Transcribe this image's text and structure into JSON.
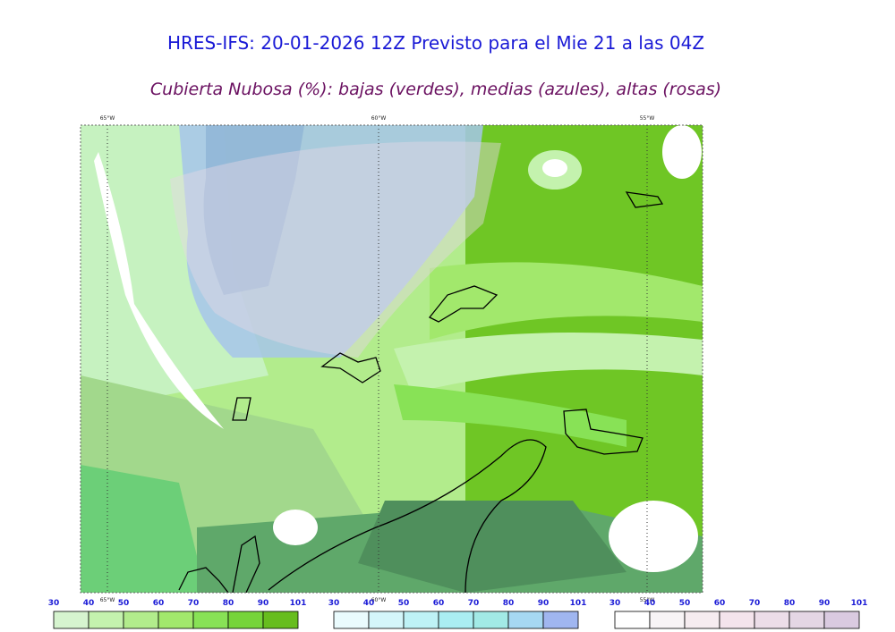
{
  "title": "HRES-IFS: 20-01-2026 12Z Previsto para el Mie 21 a las 04Z",
  "subtitle": "Cubierta Nubosa (%): bajas (verdes), medias (azules), altas (rosas)",
  "map": {
    "meridian_labels": [
      "65°W",
      "60°W",
      "55°W"
    ]
  },
  "colorbars": [
    {
      "ticks": [
        30,
        40,
        50,
        60,
        70,
        80,
        90,
        101
      ],
      "colors": [
        "#d6f4cf",
        "#c4f2ae",
        "#b2ec8c",
        "#a2e86c",
        "#88e256",
        "#76d43a",
        "#67bd1e"
      ]
    },
    {
      "ticks": [
        30,
        40,
        50,
        60,
        70,
        80,
        90,
        101
      ],
      "colors": [
        "#eafbfd",
        "#d4f6fa",
        "#bef2f6",
        "#aaeef2",
        "#a2eae6",
        "#a6d8f2",
        "#a0b6f0"
      ]
    },
    {
      "ticks": [
        30,
        40,
        50,
        60,
        70,
        80,
        90,
        101
      ],
      "colors": [
        "#ffffff",
        "#f8f4f6",
        "#f6ecf0",
        "#f4e4ec",
        "#ecdde8",
        "#e4d6e4",
        "#dacae0"
      ]
    }
  ]
}
